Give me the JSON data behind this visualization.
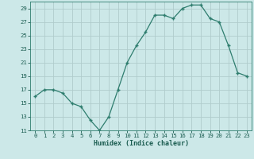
{
  "x": [
    0,
    1,
    2,
    3,
    4,
    5,
    6,
    7,
    8,
    9,
    10,
    11,
    12,
    13,
    14,
    15,
    16,
    17,
    18,
    19,
    20,
    21,
    22,
    23
  ],
  "y": [
    16,
    17,
    17,
    16.5,
    15,
    14.5,
    12.5,
    11,
    13,
    17,
    21,
    23.5,
    25.5,
    28,
    28,
    27.5,
    29,
    29.5,
    29.5,
    27.5,
    27,
    23.5,
    19.5,
    19
  ],
  "line_color": "#2e7d6e",
  "marker_color": "#2e7d6e",
  "background_color": "#cce8e8",
  "grid_color": "#b0cccc",
  "xlabel": "Humidex (Indice chaleur)",
  "ylim": [
    11,
    30
  ],
  "xlim": [
    -0.5,
    23.5
  ],
  "yticks": [
    11,
    13,
    15,
    17,
    19,
    21,
    23,
    25,
    27,
    29
  ],
  "xticks": [
    0,
    1,
    2,
    3,
    4,
    5,
    6,
    7,
    8,
    9,
    10,
    11,
    12,
    13,
    14,
    15,
    16,
    17,
    18,
    19,
    20,
    21,
    22,
    23
  ],
  "tick_fontsize": 5.2,
  "xlabel_fontsize": 6.0
}
